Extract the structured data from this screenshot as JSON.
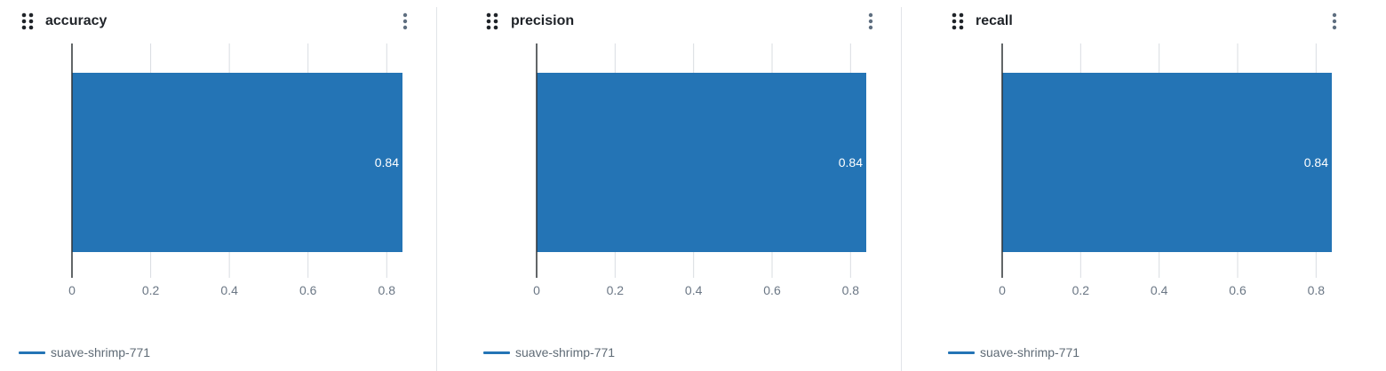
{
  "panels": [
    {
      "title": "accuracy",
      "chart_data": {
        "type": "bar",
        "orientation": "horizontal",
        "categories": [
          "suave-shrimp-771"
        ],
        "series": [
          {
            "name": "suave-shrimp-771",
            "values": [
              0.84
            ]
          }
        ],
        "data_labels": [
          "0.84"
        ],
        "xlim": [
          0,
          0.84
        ],
        "xticks": [
          0,
          0.2,
          0.4,
          0.6,
          0.8
        ],
        "xtick_labels": [
          "0",
          "0.2",
          "0.4",
          "0.6",
          "0.8"
        ],
        "grid": "vertical",
        "legend": "bottom-left"
      }
    },
    {
      "title": "precision",
      "chart_data": {
        "type": "bar",
        "orientation": "horizontal",
        "categories": [
          "suave-shrimp-771"
        ],
        "series": [
          {
            "name": "suave-shrimp-771",
            "values": [
              0.84
            ]
          }
        ],
        "data_labels": [
          "0.84"
        ],
        "xlim": [
          0,
          0.84
        ],
        "xticks": [
          0,
          0.2,
          0.4,
          0.6,
          0.8
        ],
        "xtick_labels": [
          "0",
          "0.2",
          "0.4",
          "0.6",
          "0.8"
        ],
        "grid": "vertical",
        "legend": "bottom-left"
      }
    },
    {
      "title": "recall",
      "chart_data": {
        "type": "bar",
        "orientation": "horizontal",
        "categories": [
          "suave-shrimp-771"
        ],
        "series": [
          {
            "name": "suave-shrimp-771",
            "values": [
              0.84
            ]
          }
        ],
        "data_labels": [
          "0.84"
        ],
        "xlim": [
          0,
          0.84
        ],
        "xticks": [
          0,
          0.2,
          0.4,
          0.6,
          0.8
        ],
        "xtick_labels": [
          "0",
          "0.2",
          "0.4",
          "0.6",
          "0.8"
        ],
        "grid": "vertical",
        "legend": "bottom-left"
      }
    }
  ],
  "colors": {
    "bar": "#2474b5",
    "axis": "#2f3337",
    "grid": "#d9dde2",
    "tick_label": "#6b7785",
    "data_label": "#ffffff",
    "drag_icon": "#1f2328",
    "menu_icon": "#5f6f80"
  },
  "icons": {
    "drag": "drag-handle-icon",
    "menu": "more-vertical-icon"
  }
}
